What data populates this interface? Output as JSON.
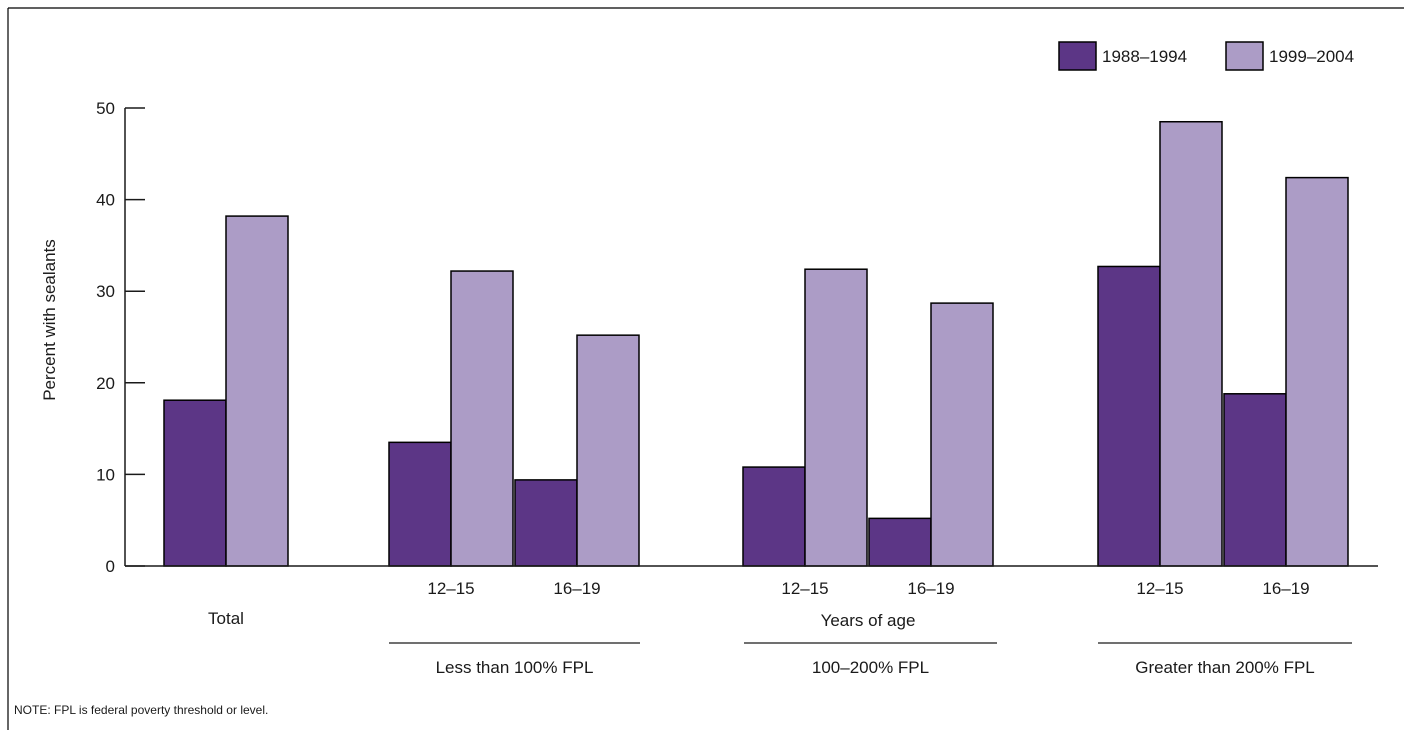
{
  "colors": {
    "series_1988": "#5c3686",
    "series_1999": "#ac9cc6",
    "axis": "#1a1a1a",
    "border": "#000000"
  },
  "chart_data": {
    "type": "bar",
    "ylabel": "Percent with sealants",
    "xlabel": "Years of age",
    "ylim": [
      0,
      50
    ],
    "yticks": [
      0,
      10,
      20,
      30,
      40,
      50
    ],
    "grid": false,
    "legend_position": "top-right",
    "categories": [
      "Total",
      "12–15",
      "16–19",
      "12–15",
      "16–19",
      "12–15",
      "16–19"
    ],
    "groups": [
      {
        "label": "Less than 100% FPL",
        "categories": [
          "12–15",
          "16–19"
        ]
      },
      {
        "label": "100–200% FPL",
        "categories": [
          "12–15",
          "16–19"
        ]
      },
      {
        "label": "Greater than 200% FPL",
        "categories": [
          "12–15",
          "16–19"
        ]
      }
    ],
    "series": [
      {
        "name": "1988–1994",
        "values": [
          18.1,
          13.5,
          9.4,
          10.8,
          5.2,
          32.7,
          18.8
        ]
      },
      {
        "name": "1999–2004",
        "values": [
          38.2,
          32.2,
          25.2,
          32.4,
          28.7,
          48.5,
          42.4
        ]
      }
    ],
    "note": "NOTE: FPL is federal poverty threshold or level."
  }
}
